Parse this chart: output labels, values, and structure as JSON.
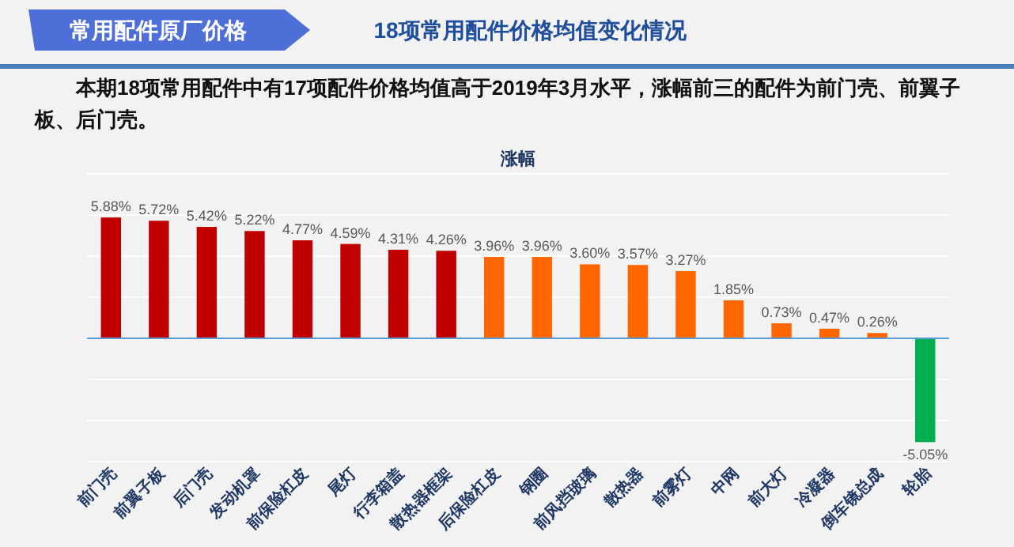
{
  "chart_data": {
    "type": "bar",
    "title": "涨幅",
    "annotations": [
      "常用配件原厂价格",
      "18项常用配件价格均值变化情况",
      "本期18项常用配件中有17项配件价格均值高于2019年3月水平，涨幅前三的配件为前门壳、前翼子板、后门壳。"
    ],
    "categories": [
      "前门壳",
      "前翼子板",
      "后门壳",
      "发动机罩",
      "前保险杠皮",
      "尾灯",
      "行李箱盖",
      "散热器框架",
      "后保险杠皮",
      "钢圈",
      "前风挡玻璃",
      "散热器",
      "前雾灯",
      "中网",
      "前大灯",
      "冷凝器",
      "倒车镜总成",
      "轮胎"
    ],
    "values": [
      5.88,
      5.72,
      5.42,
      5.22,
      4.77,
      4.59,
      4.31,
      4.26,
      3.96,
      3.96,
      3.6,
      3.57,
      3.27,
      1.85,
      0.73,
      0.47,
      0.26,
      -5.05
    ],
    "value_labels": [
      "5.88%",
      "5.72%",
      "5.42%",
      "5.22%",
      "4.77%",
      "4.59%",
      "4.31%",
      "4.26%",
      "3.96%",
      "3.96%",
      "3.60%",
      "3.57%",
      "3.27%",
      "1.85%",
      "0.73%",
      "0.47%",
      "0.26%",
      "-5.05%"
    ],
    "colors": [
      "#c00000",
      "#c00000",
      "#c00000",
      "#c00000",
      "#c00000",
      "#c00000",
      "#c00000",
      "#c00000",
      "#ff6600",
      "#ff6600",
      "#ff6600",
      "#ff6600",
      "#ff6600",
      "#ff6600",
      "#ff6600",
      "#ff6600",
      "#ff6600",
      "#00b050"
    ],
    "ylim": [
      -6,
      8
    ],
    "yticks": [
      {
        "value": -6,
        "label": null
      },
      {
        "value": -4,
        "label": null
      },
      {
        "value": -2,
        "label": null
      },
      {
        "value": 0,
        "label": null
      },
      {
        "value": 2,
        "label": null
      },
      {
        "value": 4,
        "label": null
      },
      {
        "value": 6,
        "label": null
      },
      {
        "value": 8,
        "label": null
      }
    ],
    "tick_labels": "x",
    "grid": "y",
    "ref_lines": [
      {
        "axis": "y",
        "value": 0,
        "color": "#5b9bd5"
      }
    ]
  }
}
